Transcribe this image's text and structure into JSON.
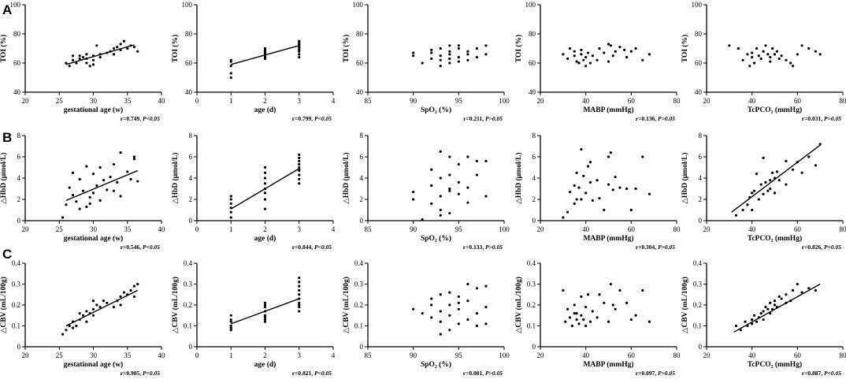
{
  "figure": {
    "panel_labels": [
      "A",
      "B",
      "C"
    ]
  },
  "chart_data": [
    {
      "id": "A1",
      "type": "scatter",
      "row": 0,
      "col": 0,
      "xlabel": "gestational age (w)",
      "ylabel": "TOI (%)",
      "xlim": [
        20,
        40
      ],
      "ylim": [
        40,
        100
      ],
      "xticks": [
        20,
        25,
        30,
        35,
        40
      ],
      "yticks": [
        40,
        60,
        80,
        100
      ],
      "fit": [
        [
          26,
          59
        ],
        [
          36,
          72.5
        ]
      ],
      "stat_r": "r=0.749,",
      "stat_p": "P<0.05",
      "x": [
        26,
        26.5,
        27,
        27.5,
        28,
        28,
        28.5,
        29,
        29,
        29.5,
        30,
        30,
        30.5,
        31,
        31,
        32,
        32.5,
        33,
        33.5,
        34,
        34,
        34.5,
        35,
        35.5,
        36,
        36.5,
        29,
        30,
        33,
        27
      ],
      "y": [
        60,
        58,
        62,
        60,
        63,
        65,
        64,
        66,
        60,
        58,
        65,
        62,
        72,
        66,
        64,
        67,
        68,
        70,
        71,
        69,
        73,
        75,
        70,
        72,
        71,
        68,
        63,
        59,
        66,
        65
      ]
    },
    {
      "id": "A2",
      "type": "scatter",
      "row": 0,
      "col": 1,
      "xlabel": "age (d)",
      "ylabel": "TOI (%)",
      "xlim": [
        0,
        4
      ],
      "ylim": [
        40,
        100
      ],
      "xticks": [
        0,
        1,
        2,
        3,
        4
      ],
      "yticks": [
        40,
        60,
        80,
        100
      ],
      "fit": [
        [
          1,
          59
        ],
        [
          3,
          72
        ]
      ],
      "stat_r": "r=0.799,",
      "stat_p": "P<0.05",
      "x": [
        1,
        1,
        1,
        1,
        1,
        2,
        2,
        2,
        2,
        2,
        2,
        2,
        2,
        3,
        3,
        3,
        3,
        3,
        3,
        3,
        3,
        3,
        3
      ],
      "y": [
        50,
        53,
        58,
        61,
        62,
        63,
        64,
        65,
        66,
        67,
        68,
        69,
        70,
        64,
        66,
        68,
        69,
        70,
        71,
        72,
        73,
        74,
        75
      ]
    },
    {
      "id": "A3",
      "type": "scatter",
      "row": 0,
      "col": 2,
      "xlabel": "SpO₂ (%)",
      "ylabel": "TOI (%)",
      "xlim": [
        85,
        100
      ],
      "ylim": [
        40,
        100
      ],
      "xticks": [
        85,
        90,
        95,
        100
      ],
      "yticks": [
        40,
        60,
        80,
        100
      ],
      "fit": null,
      "stat_r": "r=0.211,",
      "stat_p": "P>0.05",
      "x": [
        90,
        90,
        91,
        92,
        92,
        93,
        93,
        93,
        93,
        94,
        94,
        94,
        94,
        94,
        95,
        95,
        95,
        96,
        96,
        96,
        97,
        97,
        98,
        98,
        92,
        95
      ],
      "y": [
        65,
        67,
        60,
        63,
        69,
        58,
        62,
        65,
        70,
        60,
        63,
        66,
        68,
        72,
        61,
        64,
        70,
        62,
        66,
        68,
        64,
        70,
        66,
        72,
        67,
        72
      ]
    },
    {
      "id": "A4",
      "type": "scatter",
      "row": 0,
      "col": 3,
      "xlabel": "MABP (mmHg)",
      "ylabel": "TOI (%)",
      "xlim": [
        20,
        80
      ],
      "ylim": [
        40,
        100
      ],
      "xticks": [
        20,
        40,
        60,
        80
      ],
      "yticks": [
        40,
        60,
        80,
        100
      ],
      "fit": null,
      "stat_r": "r=0.136,",
      "stat_p": "P>0.05",
      "x": [
        30,
        32,
        33,
        35,
        35,
        36,
        37,
        38,
        38,
        39,
        40,
        40,
        41,
        42,
        43,
        45,
        46,
        48,
        50,
        50,
        51,
        52,
        53,
        55,
        57,
        58,
        60,
        62,
        65,
        68
      ],
      "y": [
        66,
        63,
        70,
        65,
        68,
        61,
        60,
        66,
        69,
        62,
        58,
        64,
        67,
        60,
        65,
        62,
        70,
        67,
        73,
        61,
        72,
        65,
        68,
        71,
        69,
        64,
        68,
        70,
        62,
        66
      ]
    },
    {
      "id": "A5",
      "type": "scatter",
      "row": 0,
      "col": 4,
      "xlabel": "TcPCO₂ (mmHg)",
      "ylabel": "TOI (%)",
      "xlim": [
        20,
        80
      ],
      "ylim": [
        40,
        100
      ],
      "xticks": [
        20,
        40,
        60,
        80
      ],
      "yticks": [
        40,
        60,
        80,
        100
      ],
      "fit": null,
      "stat_r": "r=0.031,",
      "stat_p": "P>0.05",
      "x": [
        30,
        34,
        36,
        38,
        39,
        40,
        40,
        41,
        42,
        43,
        44,
        45,
        46,
        47,
        48,
        48,
        49,
        50,
        51,
        52,
        53,
        55,
        57,
        58,
        60,
        62,
        65,
        68,
        70
      ],
      "y": [
        72,
        70,
        62,
        66,
        58,
        64,
        67,
        60,
        70,
        65,
        63,
        68,
        72,
        66,
        61,
        64,
        70,
        66,
        68,
        63,
        65,
        62,
        60,
        58,
        66,
        72,
        70,
        68,
        66
      ]
    },
    {
      "id": "B1",
      "type": "scatter",
      "row": 1,
      "col": 0,
      "xlabel": "gestational age (w)",
      "ylabel": "△HbD (μmol/L)",
      "xlim": [
        20,
        40
      ],
      "ylim": [
        0,
        8
      ],
      "xticks": [
        20,
        25,
        30,
        35,
        40
      ],
      "yticks": [
        0,
        2,
        4,
        6,
        8
      ],
      "fit": [
        [
          26,
          1.9
        ],
        [
          36.5,
          4.7
        ]
      ],
      "stat_r": "r=0.546,",
      "stat_p": "P<0.05",
      "x": [
        25.5,
        26,
        26.5,
        27,
        27,
        27.5,
        28,
        28,
        28.5,
        29,
        29,
        29.5,
        30,
        30,
        30.5,
        31,
        31,
        31.5,
        32,
        32.5,
        33,
        33.5,
        34,
        34,
        35,
        35.5,
        36,
        36,
        36.5,
        33,
        29.5
      ],
      "y": [
        0.3,
        1.5,
        3.1,
        2.4,
        4.5,
        1.8,
        1.1,
        3.9,
        2.8,
        5.1,
        1.3,
        2.2,
        4.4,
        2.6,
        3.3,
        1.9,
        5.0,
        3.8,
        2.9,
        4.1,
        5.3,
        3.6,
        6.4,
        2.3,
        4.6,
        3.9,
        6.0,
        5.8,
        3.7,
        2.8,
        1.6
      ]
    },
    {
      "id": "B2",
      "type": "scatter",
      "row": 1,
      "col": 1,
      "xlabel": "age (d)",
      "ylabel": "△HbD (μmol/L)",
      "xlim": [
        0,
        4
      ],
      "ylim": [
        0,
        8
      ],
      "xticks": [
        0,
        1,
        2,
        3,
        4
      ],
      "yticks": [
        0,
        2,
        4,
        6,
        8
      ],
      "fit": [
        [
          1,
          1.1
        ],
        [
          3,
          4.9
        ]
      ],
      "stat_r": "r=0.844,",
      "stat_p": "P<0.05",
      "x": [
        1,
        1,
        1,
        1,
        1,
        1,
        2,
        2,
        2,
        2,
        2,
        2,
        2,
        2,
        3,
        3,
        3,
        3,
        3,
        3,
        3,
        3,
        3,
        3
      ],
      "y": [
        0.3,
        0.8,
        1.2,
        1.6,
        2.0,
        2.3,
        1.1,
        2.0,
        2.6,
        3.0,
        3.5,
        4.0,
        4.5,
        5.0,
        3.5,
        3.9,
        4.3,
        4.7,
        5.0,
        5.3,
        5.6,
        5.9,
        6.2,
        4.8
      ]
    },
    {
      "id": "B3",
      "type": "scatter",
      "row": 1,
      "col": 2,
      "xlabel": "SpO₂ (%)",
      "ylabel": "△HbD (μmol/L)",
      "xlim": [
        85,
        100
      ],
      "ylim": [
        0,
        8
      ],
      "xticks": [
        85,
        90,
        95,
        100
      ],
      "yticks": [
        0,
        2,
        4,
        6,
        8
      ],
      "fit": null,
      "stat_r": "r=0.133,",
      "stat_p": "P>0.05",
      "x": [
        90,
        90,
        91,
        92,
        92,
        92,
        93,
        93,
        93,
        93,
        94,
        94,
        94,
        94,
        95,
        95,
        95,
        96,
        96,
        96,
        97,
        97,
        98,
        98,
        93,
        94
      ],
      "y": [
        2.0,
        2.7,
        0.1,
        3.3,
        4.8,
        1.6,
        0.5,
        2.3,
        4.0,
        6.5,
        0.7,
        3.0,
        4.3,
        6.0,
        2.5,
        3.6,
        5.3,
        1.7,
        3.1,
        6.0,
        4.3,
        5.6,
        2.3,
        5.6,
        1.0,
        2.8
      ]
    },
    {
      "id": "B4",
      "type": "scatter",
      "row": 1,
      "col": 3,
      "xlabel": "MABP (mmHg)",
      "ylabel": "△HbD (μmol/L)",
      "xlim": [
        20,
        80
      ],
      "ylim": [
        0,
        8
      ],
      "xticks": [
        20,
        40,
        60,
        80
      ],
      "yticks": [
        0,
        2,
        4,
        6,
        8
      ],
      "fit": null,
      "stat_r": "r=0.304,",
      "stat_p": "P>0.05",
      "x": [
        30,
        32,
        33,
        35,
        35,
        36,
        37,
        38,
        38,
        39,
        40,
        41,
        42,
        43,
        45,
        46,
        48,
        50,
        50,
        51,
        52,
        53,
        55,
        58,
        60,
        62,
        65,
        68,
        36,
        42
      ],
      "y": [
        0.3,
        0.8,
        2.7,
        1.6,
        3.3,
        4.5,
        3.1,
        6.7,
        2.0,
        4.2,
        2.6,
        5.1,
        5.5,
        1.9,
        3.8,
        2.1,
        1.0,
        3.4,
        6.0,
        6.4,
        2.9,
        4.1,
        3.1,
        3.0,
        1.0,
        3.0,
        6.0,
        2.5,
        2.0,
        3.6
      ]
    },
    {
      "id": "B5",
      "type": "scatter",
      "row": 1,
      "col": 4,
      "xlabel": "TcPCO₂ (mmHg)",
      "ylabel": "△HbD (μmol/L)",
      "xlim": [
        20,
        80
      ],
      "ylim": [
        0,
        8
      ],
      "xticks": [
        20,
        40,
        60,
        80
      ],
      "yticks": [
        0,
        2,
        4,
        6,
        8
      ],
      "fit": [
        [
          31,
          0.8
        ],
        [
          70,
          7.1
        ]
      ],
      "stat_r": "r=0.826,",
      "stat_p": "P<0.05",
      "x": [
        33,
        36,
        38,
        39,
        40,
        40,
        41,
        42,
        43,
        44,
        45,
        45,
        46,
        47,
        48,
        48,
        49,
        50,
        50,
        51,
        52,
        55,
        55,
        58,
        60,
        62,
        65,
        68,
        70
      ],
      "y": [
        0.5,
        1.0,
        1.5,
        2.2,
        1.0,
        2.6,
        2.8,
        4.4,
        2.0,
        3.4,
        2.5,
        5.9,
        3.6,
        2.8,
        3.8,
        3.0,
        4.5,
        4.0,
        2.6,
        4.6,
        3.8,
        3.4,
        5.6,
        4.8,
        5.5,
        4.5,
        6.0,
        5.2,
        7.2
      ]
    },
    {
      "id": "C1",
      "type": "scatter",
      "row": 2,
      "col": 0,
      "xlabel": "gestational age (w)",
      "ylabel": "△CBV (mL/100g)",
      "xlim": [
        20,
        40
      ],
      "ylim": [
        0,
        0.4
      ],
      "xticks": [
        20,
        25,
        30,
        35,
        40
      ],
      "yticks": [
        0,
        0.1,
        0.2,
        0.3,
        0.4
      ],
      "fit": [
        [
          26,
          0.1
        ],
        [
          36.5,
          0.27
        ]
      ],
      "stat_r": "r=0.905,",
      "stat_p": "P<0.05",
      "x": [
        25.5,
        26,
        26.5,
        27,
        27.5,
        28,
        28,
        28.5,
        29,
        29,
        29.5,
        30,
        30,
        30.5,
        31,
        31.5,
        32,
        33,
        33.5,
        34,
        34,
        34.5,
        35,
        35.5,
        36,
        36,
        36.5,
        27,
        30
      ],
      "y": [
        0.06,
        0.08,
        0.1,
        0.12,
        0.1,
        0.13,
        0.16,
        0.15,
        0.12,
        0.17,
        0.16,
        0.18,
        0.15,
        0.2,
        0.19,
        0.22,
        0.21,
        0.19,
        0.22,
        0.24,
        0.2,
        0.26,
        0.25,
        0.27,
        0.24,
        0.29,
        0.3,
        0.09,
        0.22
      ]
    },
    {
      "id": "C2",
      "type": "scatter",
      "row": 2,
      "col": 1,
      "xlabel": "age (d)",
      "ylabel": "△CBV (mL/100g)",
      "xlim": [
        0,
        4
      ],
      "ylim": [
        0,
        0.4
      ],
      "xticks": [
        0,
        1,
        2,
        3,
        4
      ],
      "yticks": [
        0,
        0.1,
        0.2,
        0.3,
        0.4
      ],
      "fit": [
        [
          1,
          0.11
        ],
        [
          3,
          0.23
        ]
      ],
      "stat_r": "r=0.821,",
      "stat_p": "P<0.05",
      "x": [
        1,
        1,
        1,
        1,
        1,
        1,
        2,
        2,
        2,
        2,
        2,
        2,
        2,
        2,
        3,
        3,
        3,
        3,
        3,
        3,
        3,
        3,
        3,
        3
      ],
      "y": [
        0.08,
        0.09,
        0.1,
        0.12,
        0.13,
        0.15,
        0.12,
        0.13,
        0.14,
        0.15,
        0.17,
        0.19,
        0.2,
        0.21,
        0.17,
        0.19,
        0.21,
        0.23,
        0.25,
        0.27,
        0.29,
        0.31,
        0.33,
        0.2
      ]
    },
    {
      "id": "C3",
      "type": "scatter",
      "row": 2,
      "col": 2,
      "xlabel": "SpO₂ (%)",
      "ylabel": "△CBV (mL/100g)",
      "xlim": [
        85,
        100
      ],
      "ylim": [
        0,
        0.4
      ],
      "xticks": [
        85,
        90,
        95,
        100
      ],
      "yticks": [
        0,
        0.1,
        0.2,
        0.3,
        0.4
      ],
      "fit": null,
      "stat_r": "r=0.081,",
      "stat_p": "P>0.05",
      "x": [
        90,
        91,
        92,
        92,
        93,
        93,
        93,
        93,
        94,
        94,
        94,
        94,
        95,
        95,
        95,
        96,
        96,
        96,
        97,
        97,
        97,
        98,
        98,
        98,
        92,
        95
      ],
      "y": [
        0.18,
        0.16,
        0.2,
        0.23,
        0.06,
        0.12,
        0.17,
        0.25,
        0.08,
        0.15,
        0.2,
        0.26,
        0.11,
        0.18,
        0.24,
        0.13,
        0.22,
        0.3,
        0.1,
        0.16,
        0.28,
        0.11,
        0.19,
        0.29,
        0.14,
        0.21
      ]
    },
    {
      "id": "C4",
      "type": "scatter",
      "row": 2,
      "col": 3,
      "xlabel": "MABP (mmHg)",
      "ylabel": "△CBV (mL/100g)",
      "xlim": [
        20,
        80
      ],
      "ylim": [
        0,
        0.4
      ],
      "xticks": [
        20,
        40,
        60,
        80
      ],
      "yticks": [
        0,
        0.1,
        0.2,
        0.3,
        0.4
      ],
      "fit": null,
      "stat_r": "r=0.097,",
      "stat_p": "P>0.05",
      "x": [
        30,
        31,
        32,
        33,
        34,
        35,
        35,
        36,
        37,
        38,
        38,
        39,
        40,
        41,
        42,
        43,
        45,
        46,
        48,
        50,
        51,
        52,
        53,
        55,
        58,
        60,
        62,
        65,
        68,
        40,
        36
      ],
      "y": [
        0.27,
        0.12,
        0.18,
        0.14,
        0.1,
        0.16,
        0.2,
        0.13,
        0.11,
        0.15,
        0.24,
        0.13,
        0.19,
        0.25,
        0.12,
        0.17,
        0.14,
        0.25,
        0.21,
        0.12,
        0.3,
        0.2,
        0.18,
        0.27,
        0.21,
        0.13,
        0.15,
        0.27,
        0.12,
        0.1,
        0.16
      ]
    },
    {
      "id": "C5",
      "type": "scatter",
      "row": 2,
      "col": 4,
      "xlabel": "TcPCO₂ (mmHg)",
      "ylabel": "△CBV (mL/100g)",
      "xlim": [
        20,
        80
      ],
      "ylim": [
        0,
        0.4
      ],
      "xticks": [
        20,
        40,
        60,
        80
      ],
      "yticks": [
        0,
        0.1,
        0.2,
        0.3,
        0.4
      ],
      "fit": [
        [
          32,
          0.07
        ],
        [
          70,
          0.3
        ]
      ],
      "stat_r": "r=0.887,",
      "stat_p": "P<0.05",
      "x": [
        33,
        35,
        37,
        38,
        40,
        40,
        41,
        42,
        43,
        44,
        45,
        45,
        46,
        47,
        48,
        48,
        49,
        50,
        50,
        51,
        52,
        53,
        55,
        55,
        57,
        58,
        60,
        62,
        65,
        68
      ],
      "y": [
        0.1,
        0.08,
        0.12,
        0.1,
        0.13,
        0.11,
        0.15,
        0.12,
        0.14,
        0.16,
        0.13,
        0.17,
        0.19,
        0.18,
        0.16,
        0.21,
        0.18,
        0.2,
        0.22,
        0.19,
        0.24,
        0.23,
        0.21,
        0.25,
        0.22,
        0.27,
        0.3,
        0.26,
        0.28,
        0.27
      ]
    }
  ]
}
